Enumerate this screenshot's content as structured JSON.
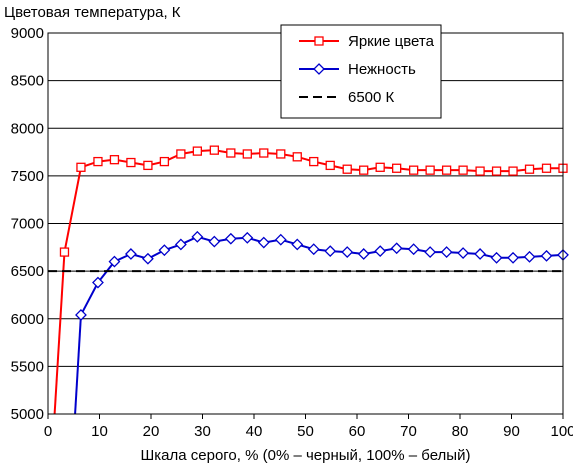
{
  "chart_data": {
    "type": "line",
    "title": "Цветовая температура, К",
    "xlabel": "Шкала серого, % (0% – черный, 100% – белый)",
    "ylabel": "",
    "xlim": [
      0,
      100
    ],
    "ylim": [
      5000,
      9000
    ],
    "xticks": [
      "0",
      "10",
      "20",
      "30",
      "40",
      "50",
      "60",
      "70",
      "80",
      "90",
      "100"
    ],
    "yticks": [
      "5000",
      "5500",
      "6000",
      "6500",
      "7000",
      "7500",
      "8000",
      "8500",
      "9000"
    ],
    "grid": "horizontal",
    "legend_position": "top-right",
    "series": [
      {
        "name": "Яркие цвета",
        "color": "#ff0000",
        "marker": "square",
        "x": [
          3.2,
          6.4,
          9.7,
          12.9,
          16.1,
          19.4,
          22.6,
          25.8,
          29.0,
          32.3,
          35.5,
          38.7,
          41.9,
          45.2,
          48.4,
          51.6,
          54.8,
          58.1,
          61.3,
          64.5,
          67.7,
          71.0,
          74.2,
          77.4,
          80.6,
          83.9,
          87.1,
          90.3,
          93.5,
          96.8,
          100
        ],
        "y": [
          6700,
          7590,
          7650,
          7670,
          7640,
          7610,
          7650,
          7730,
          7760,
          7770,
          7740,
          7730,
          7740,
          7730,
          7700,
          7650,
          7610,
          7570,
          7560,
          7590,
          7580,
          7560,
          7560,
          7560,
          7560,
          7550,
          7550,
          7550,
          7570,
          7580,
          7580
        ]
      },
      {
        "name": "Нежность",
        "color": "#0000cc",
        "marker": "diamond",
        "x": [
          6.4,
          9.7,
          12.9,
          16.1,
          19.4,
          22.6,
          25.8,
          29.0,
          32.3,
          35.5,
          38.7,
          41.9,
          45.2,
          48.4,
          51.6,
          54.8,
          58.1,
          61.3,
          64.5,
          67.7,
          71.0,
          74.2,
          77.4,
          80.6,
          83.9,
          87.1,
          90.3,
          93.5,
          96.8,
          100
        ],
        "y": [
          6040,
          6380,
          6600,
          6680,
          6630,
          6720,
          6780,
          6860,
          6810,
          6840,
          6850,
          6800,
          6830,
          6780,
          6730,
          6710,
          6700,
          6680,
          6710,
          6740,
          6730,
          6700,
          6700,
          6690,
          6680,
          6640,
          6640,
          6650,
          6660,
          6670
        ]
      },
      {
        "name": "6500 К",
        "color": "#000000",
        "dash": true,
        "x": [
          0,
          100
        ],
        "y": [
          6500,
          6500
        ]
      }
    ]
  }
}
